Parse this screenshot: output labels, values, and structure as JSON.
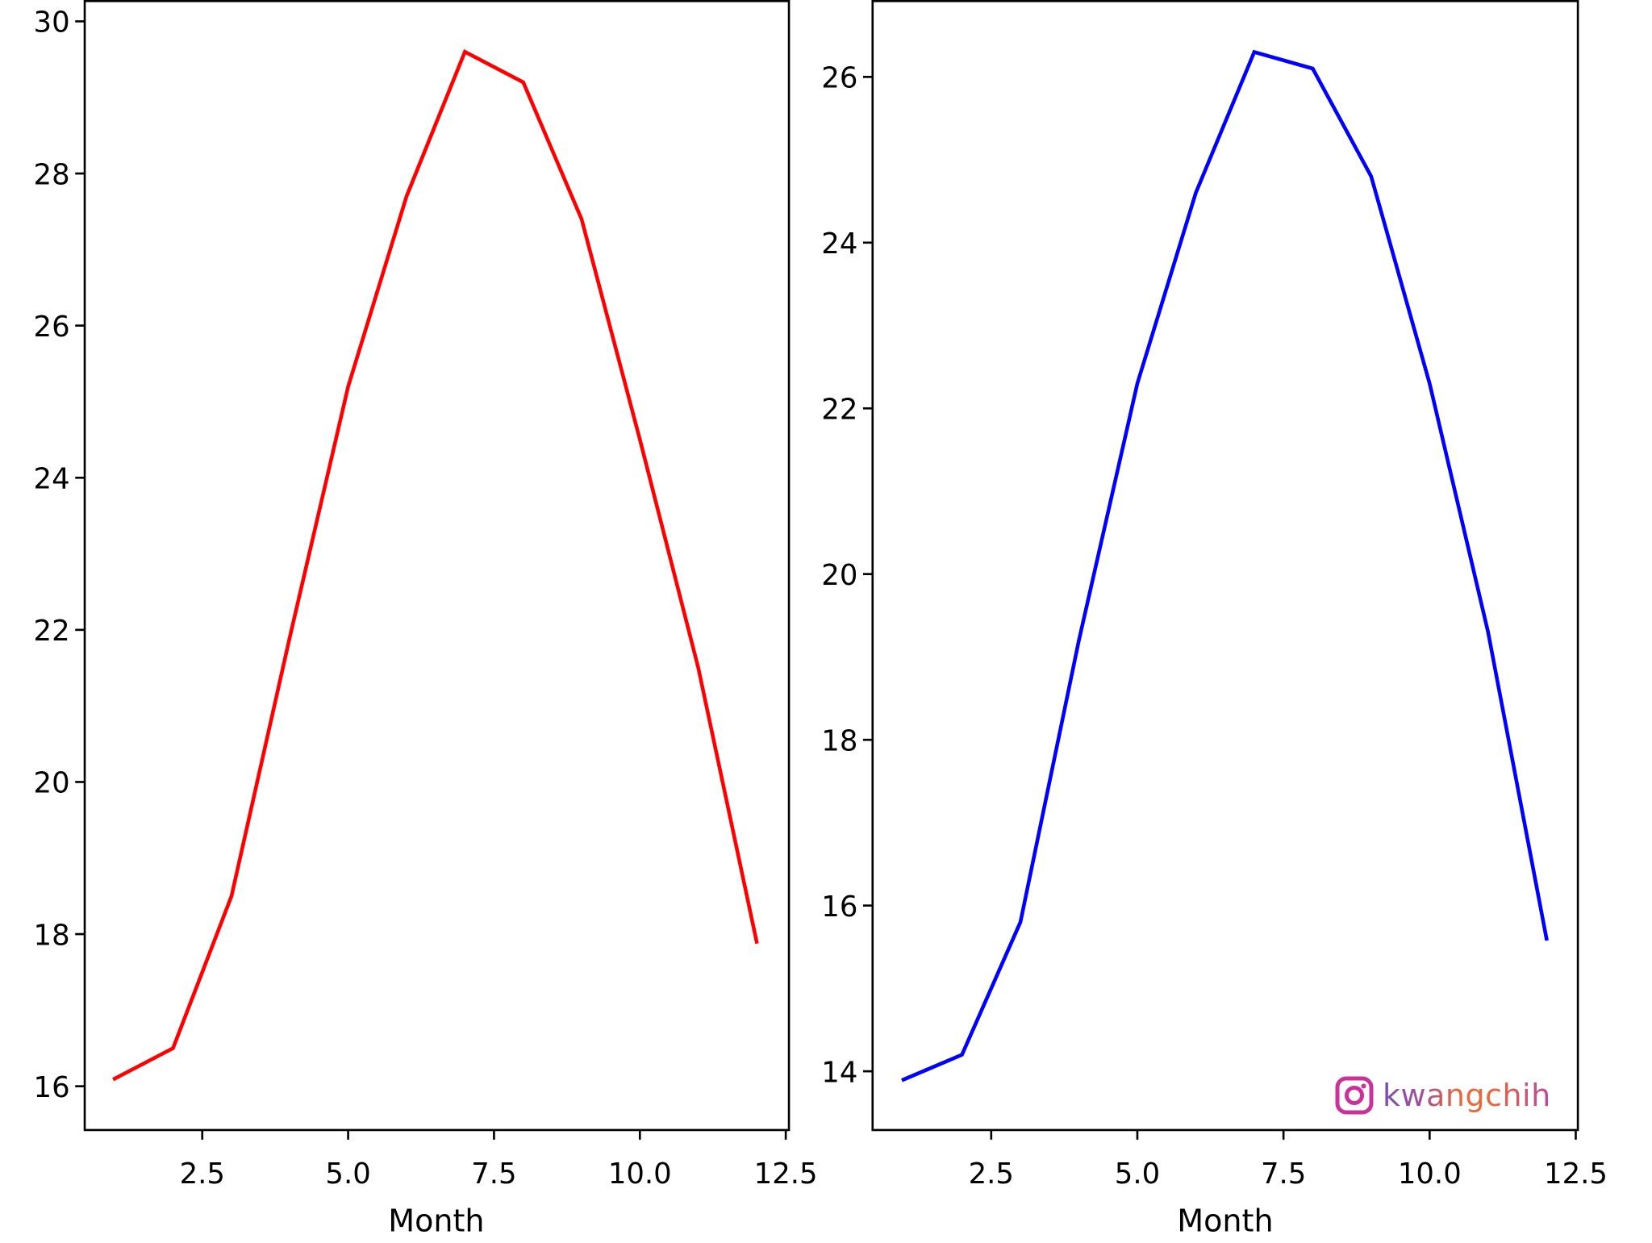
{
  "chart_data": [
    {
      "type": "line",
      "title": "",
      "xlabel": "Month",
      "ylabel": "",
      "x": [
        1,
        2,
        3,
        4,
        5,
        6,
        7,
        8,
        9,
        10,
        11,
        12
      ],
      "series": [
        {
          "name": "red series",
          "color": "#ff0000",
          "values": [
            16.1,
            16.5,
            18.5,
            21.9,
            25.2,
            27.7,
            29.6,
            29.2,
            27.4,
            24.5,
            21.5,
            17.9
          ]
        }
      ],
      "xlim": [
        0.45,
        12.55
      ],
      "ylim": [
        15.5,
        30.3
      ],
      "xticks": [
        2.5,
        5.0,
        7.5,
        10.0,
        12.5
      ],
      "xtick_labels": [
        "2.5",
        "5.0",
        "7.5",
        "10.0",
        "12.5"
      ],
      "yticks": [
        16,
        18,
        20,
        22,
        24,
        26,
        28,
        30
      ],
      "ytick_labels": [
        "16",
        "18",
        "20",
        "22",
        "24",
        "26",
        "28",
        "30"
      ],
      "grid": false,
      "legend": null
    },
    {
      "type": "line",
      "title": "",
      "xlabel": "Month",
      "ylabel": "",
      "x": [
        1,
        2,
        3,
        4,
        5,
        6,
        7,
        8,
        9,
        10,
        11,
        12
      ],
      "series": [
        {
          "name": "blue series",
          "color": "#0000ff",
          "values": [
            13.9,
            14.2,
            15.8,
            19.2,
            22.3,
            24.6,
            26.3,
            26.1,
            24.8,
            22.3,
            19.3,
            15.6
          ]
        }
      ],
      "xlim": [
        0.45,
        12.55
      ],
      "ylim": [
        13.3,
        26.9
      ],
      "xticks": [
        2.5,
        5.0,
        7.5,
        10.0,
        12.5
      ],
      "xtick_labels": [
        "2.5",
        "5.0",
        "7.5",
        "10.0",
        "12.5"
      ],
      "yticks": [
        14,
        16,
        18,
        20,
        22,
        24,
        26
      ],
      "ytick_labels": [
        "14",
        "16",
        "18",
        "20",
        "22",
        "24",
        "26"
      ],
      "grid": false,
      "legend": null
    }
  ],
  "panels": [
    {
      "xlabel": "Month"
    },
    {
      "xlabel": "Month"
    }
  ],
  "watermark": {
    "icon": "instagram-icon",
    "text": "kwangchih",
    "icon_color": "#c8329a"
  }
}
